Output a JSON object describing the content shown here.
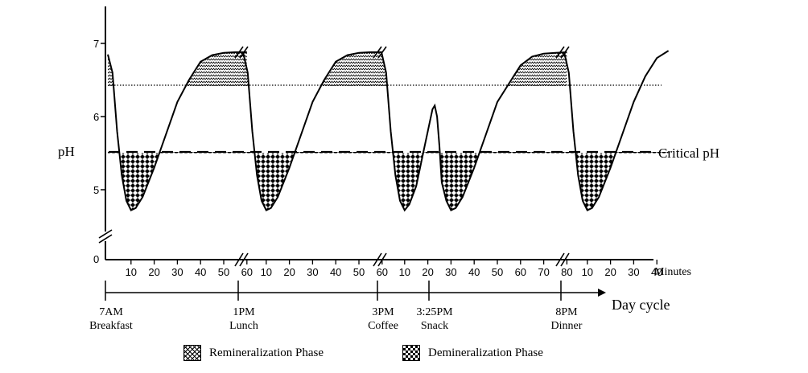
{
  "chart_data": {
    "type": "line",
    "title": "",
    "ylabel": "pH",
    "ylim": [
      0,
      7.5
    ],
    "y_ticks": [
      "0",
      "5",
      "6",
      "7"
    ],
    "critical_ph": 5.5,
    "critical_ph_label": "Critical pH",
    "remineralization_threshold_ph": 6.4,
    "minutes_label": "Minutes",
    "day_cycle_label": "Day cycle",
    "segments": [
      {
        "event_time": "7AM",
        "event_name": "Breakfast",
        "minute_ticks": [
          "10",
          "20",
          "30",
          "40",
          "50",
          "60"
        ],
        "curve": [
          [
            0,
            6.85
          ],
          [
            2,
            6.6
          ],
          [
            4,
            5.8
          ],
          [
            6,
            5.2
          ],
          [
            8,
            4.85
          ],
          [
            10,
            4.72
          ],
          [
            12,
            4.75
          ],
          [
            15,
            4.9
          ],
          [
            20,
            5.3
          ],
          [
            25,
            5.75
          ],
          [
            30,
            6.2
          ],
          [
            35,
            6.5
          ],
          [
            40,
            6.75
          ],
          [
            45,
            6.84
          ],
          [
            50,
            6.87
          ],
          [
            55,
            6.88
          ],
          [
            60,
            6.88
          ]
        ]
      },
      {
        "event_time": "1PM",
        "event_name": "Lunch",
        "minute_ticks": [
          "10",
          "20",
          "30",
          "40",
          "50",
          "60"
        ],
        "curve": [
          [
            0,
            6.88
          ],
          [
            2,
            6.6
          ],
          [
            4,
            5.8
          ],
          [
            6,
            5.2
          ],
          [
            8,
            4.85
          ],
          [
            10,
            4.72
          ],
          [
            12,
            4.75
          ],
          [
            15,
            4.9
          ],
          [
            20,
            5.3
          ],
          [
            25,
            5.75
          ],
          [
            30,
            6.2
          ],
          [
            35,
            6.5
          ],
          [
            40,
            6.75
          ],
          [
            45,
            6.84
          ],
          [
            50,
            6.87
          ],
          [
            55,
            6.88
          ],
          [
            60,
            6.88
          ]
        ]
      },
      {
        "event_time": "3PM",
        "event_name": "Coffee",
        "minute_ticks": [
          "10",
          "20",
          "30",
          "40",
          "50",
          "60",
          "70",
          "80"
        ],
        "curve": [
          [
            0,
            6.88
          ],
          [
            2,
            6.6
          ],
          [
            4,
            5.8
          ],
          [
            6,
            5.2
          ],
          [
            8,
            4.85
          ],
          [
            10,
            4.72
          ],
          [
            12,
            4.8
          ],
          [
            15,
            5.05
          ],
          [
            18,
            5.5
          ],
          [
            20,
            5.8
          ],
          [
            22,
            6.1
          ],
          [
            23,
            6.15
          ],
          [
            24,
            6.0
          ],
          [
            25,
            5.6
          ],
          [
            26,
            5.1
          ],
          [
            28,
            4.85
          ],
          [
            30,
            4.72
          ],
          [
            32,
            4.75
          ],
          [
            35,
            4.9
          ],
          [
            40,
            5.3
          ],
          [
            45,
            5.75
          ],
          [
            50,
            6.2
          ],
          [
            55,
            6.45
          ],
          [
            60,
            6.7
          ],
          [
            65,
            6.82
          ],
          [
            70,
            6.86
          ],
          [
            75,
            6.87
          ],
          [
            80,
            6.88
          ]
        ]
      },
      {
        "event_time": "8PM",
        "event_name": "Dinner",
        "minute_ticks": [
          "10",
          "20",
          "30",
          "40"
        ],
        "curve": [
          [
            0,
            6.88
          ],
          [
            2,
            6.6
          ],
          [
            4,
            5.8
          ],
          [
            6,
            5.2
          ],
          [
            8,
            4.85
          ],
          [
            10,
            4.72
          ],
          [
            12,
            4.75
          ],
          [
            15,
            4.9
          ],
          [
            20,
            5.3
          ],
          [
            25,
            5.75
          ],
          [
            30,
            6.2
          ],
          [
            35,
            6.55
          ],
          [
            40,
            6.8
          ],
          [
            45,
            6.9
          ]
        ]
      }
    ],
    "snack_event": {
      "event_time": "3:25PM",
      "event_name": "Snack"
    },
    "legend": {
      "remineralization": "Remineralization Phase",
      "demineralization": "Demineralization Phase"
    }
  }
}
